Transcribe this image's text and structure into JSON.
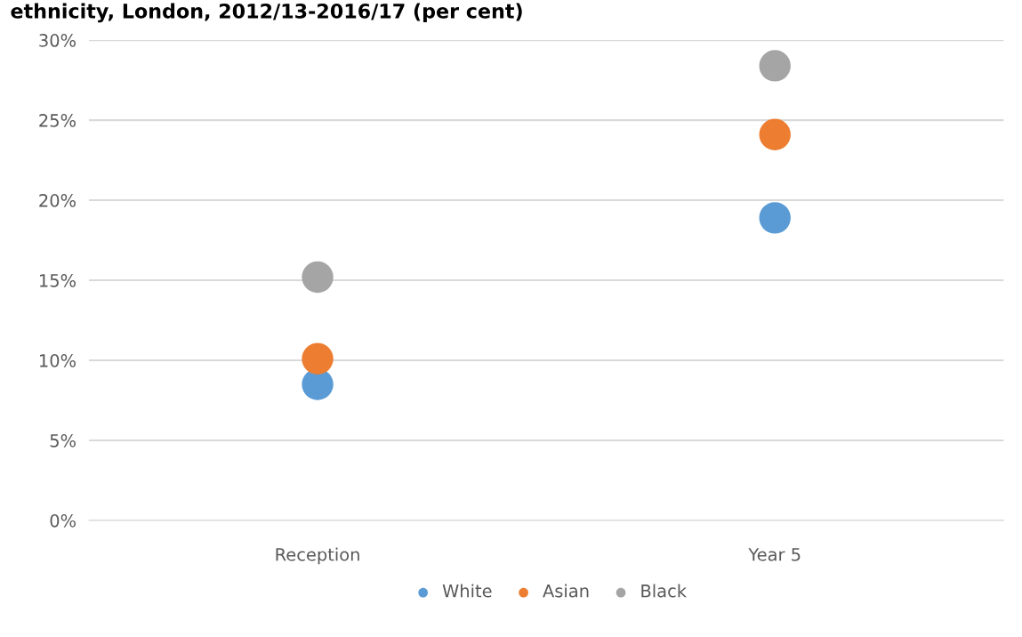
{
  "chart_data": {
    "type": "scatter",
    "title": "ethnicity, London, 2012/13-2016/17 (per cent)",
    "categories": [
      "Reception",
      "Year 5"
    ],
    "series": [
      {
        "name": "White",
        "color": "#5b9bd5",
        "values": [
          8.5,
          18.9
        ]
      },
      {
        "name": "Asian",
        "color": "#ed7d31",
        "values": [
          10.1,
          24.1
        ]
      },
      {
        "name": "Black",
        "color": "#a5a5a5",
        "values": [
          15.2,
          28.4
        ]
      }
    ],
    "ylim": [
      0,
      30
    ],
    "yticks": [
      {
        "value": 0,
        "label": "0%"
      },
      {
        "value": 5,
        "label": "5%"
      },
      {
        "value": 10,
        "label": "10%"
      },
      {
        "value": 15,
        "label": "15%"
      },
      {
        "value": 20,
        "label": "20%"
      },
      {
        "value": 25,
        "label": "25%"
      },
      {
        "value": 30,
        "label": "30%"
      }
    ],
    "grid": "y",
    "legend": "bottom",
    "marker": "circle"
  }
}
